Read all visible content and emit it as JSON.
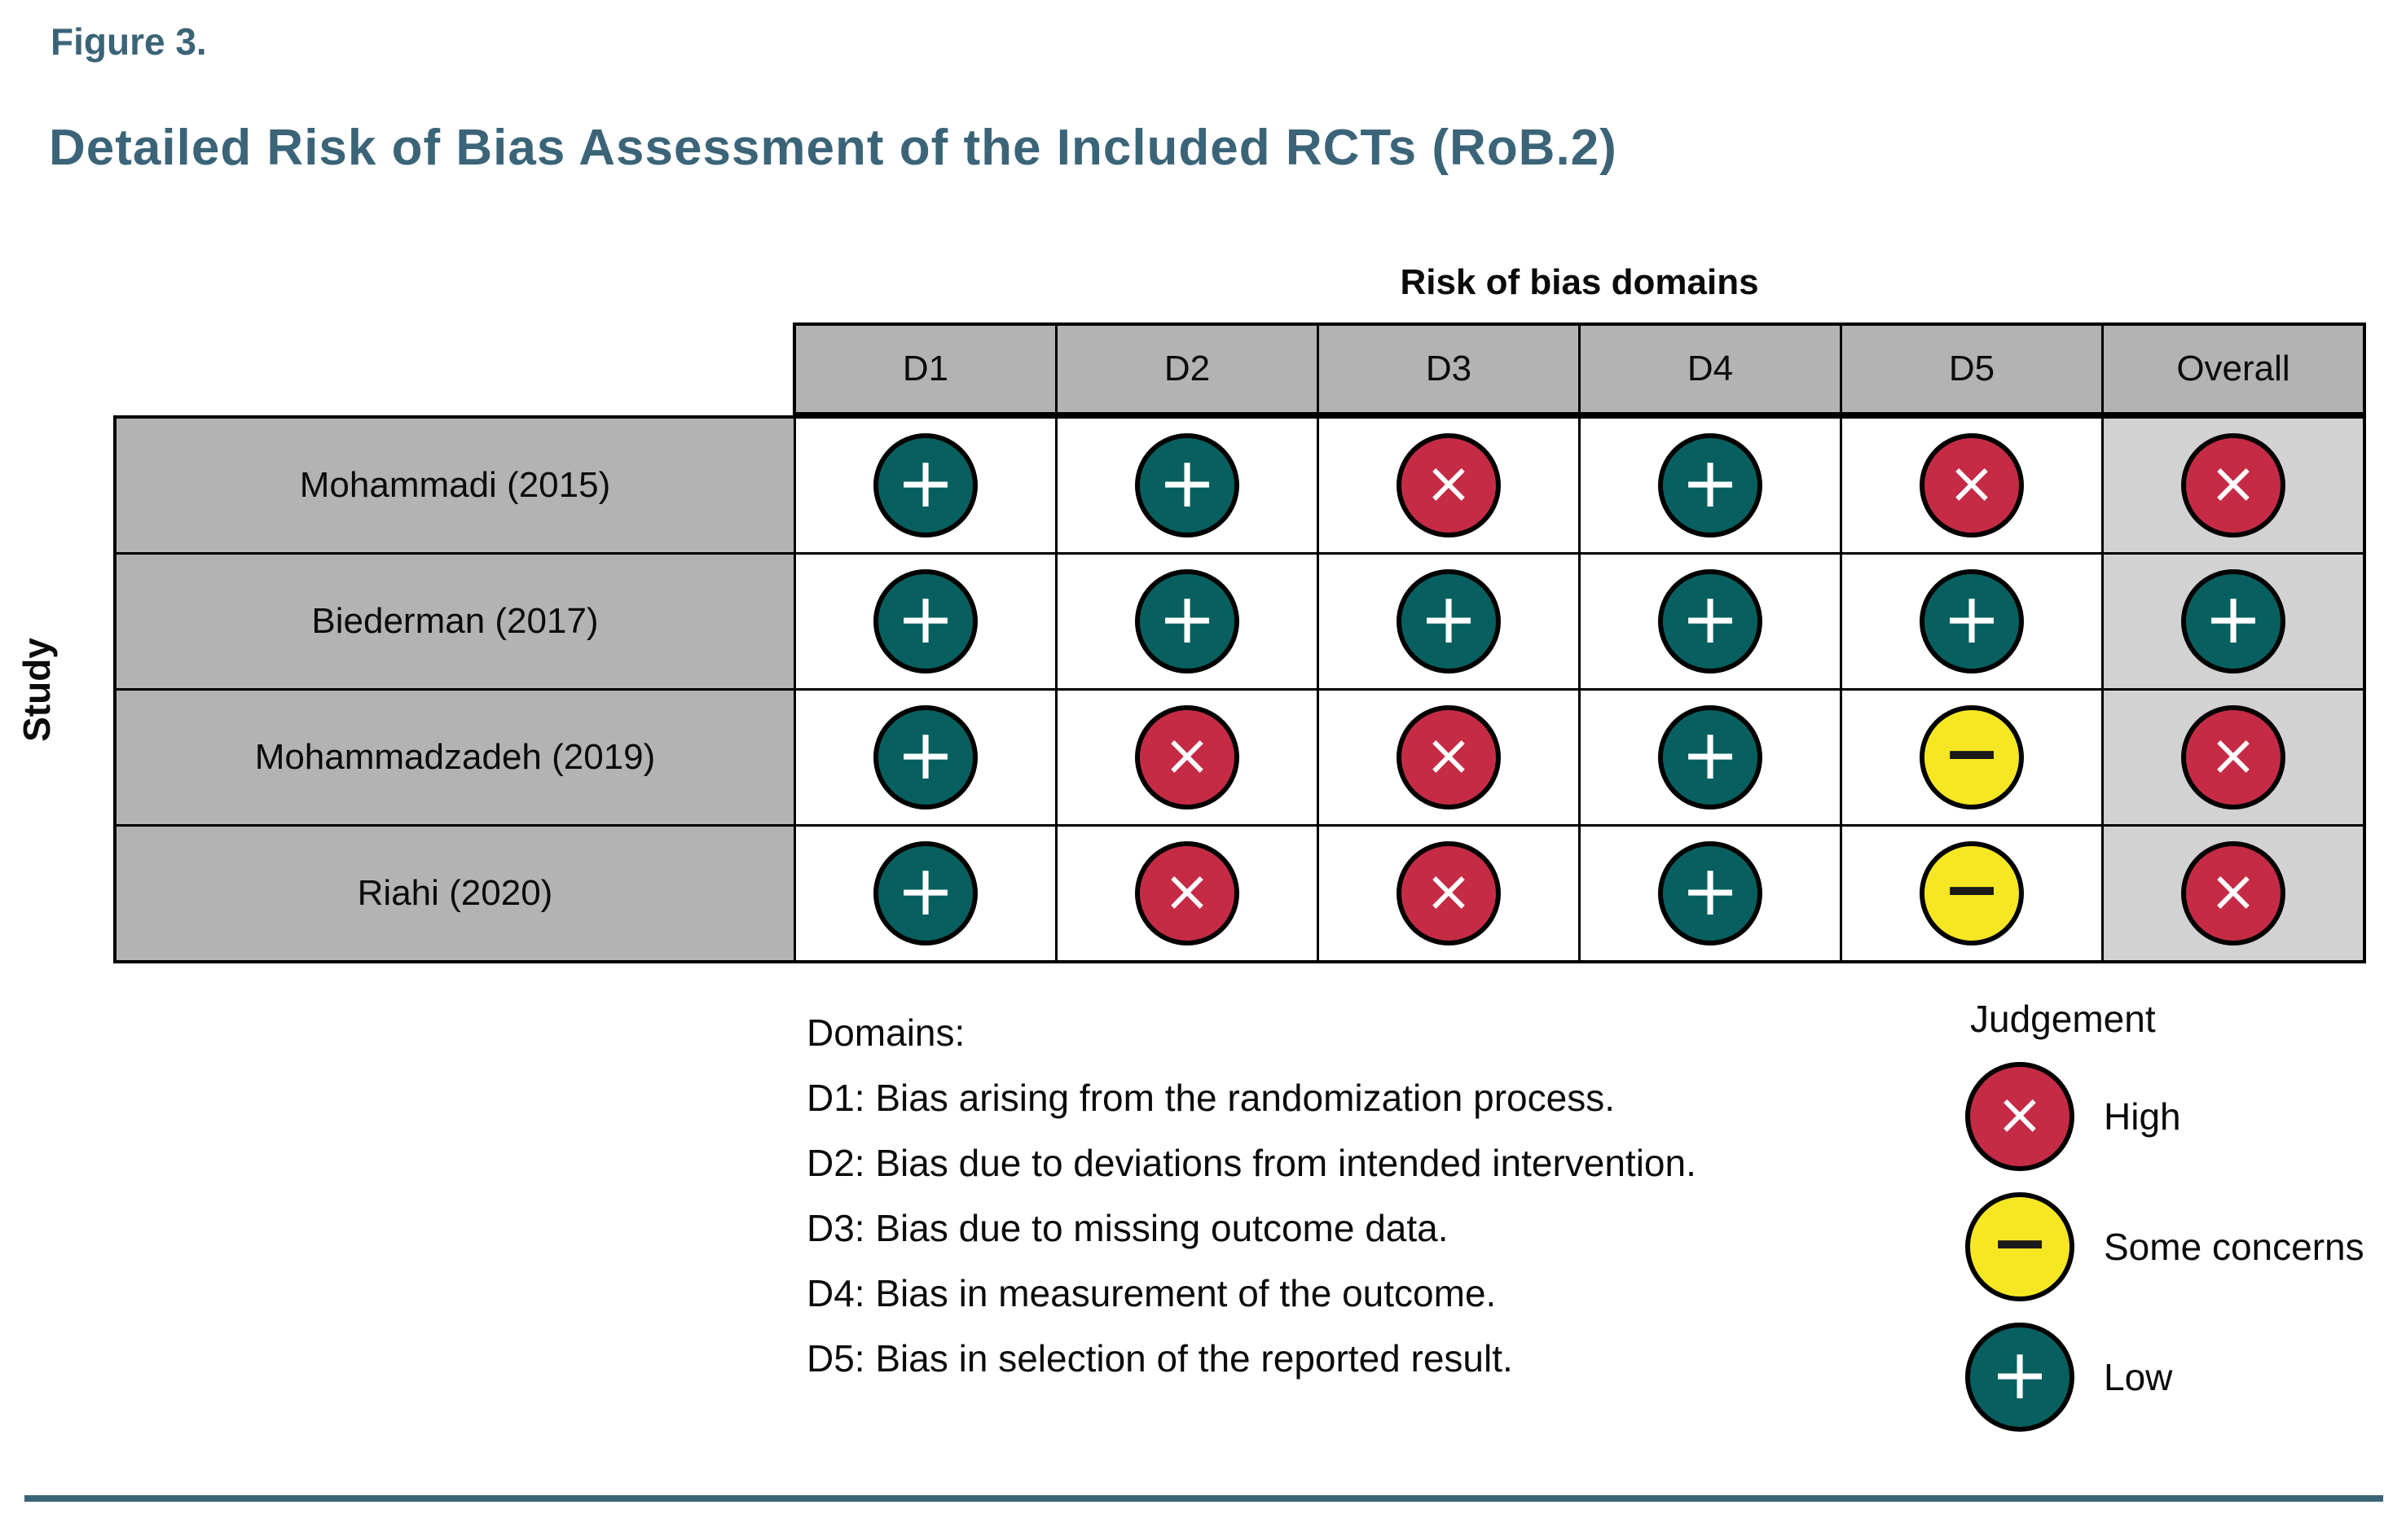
{
  "figure_label": "Figure 3.",
  "figure_title": "Detailed Risk of Bias Assessment of the Included RCTs (RoB.2)",
  "table": {
    "header_caption": "Risk of bias domains",
    "y_axis_label": "Study",
    "columns": [
      "D1",
      "D2",
      "D3",
      "D4",
      "D5",
      "Overall"
    ],
    "rows": [
      {
        "study": "Mohammadi (2015)",
        "judgements": [
          "low",
          "low",
          "high",
          "low",
          "high",
          "high"
        ]
      },
      {
        "study": "Biederman (2017)",
        "judgements": [
          "low",
          "low",
          "low",
          "low",
          "low",
          "low"
        ]
      },
      {
        "study": "Mohammadzadeh (2019)",
        "judgements": [
          "low",
          "high",
          "high",
          "low",
          "some_concerns",
          "high"
        ]
      },
      {
        "study": "Riahi (2020)",
        "judgements": [
          "low",
          "high",
          "high",
          "low",
          "some_concerns",
          "high"
        ]
      }
    ]
  },
  "judgement_styles": {
    "low": {
      "symbol": "+",
      "fill": "#07605f",
      "symbol_color": "#ffffff"
    },
    "some_concerns": {
      "symbol": "−",
      "fill": "#f7e723",
      "symbol_color": "#1a1a1a"
    },
    "high": {
      "symbol": "×",
      "fill": "#c52b45",
      "symbol_color": "#ffffff"
    }
  },
  "domains_legend": {
    "heading": "Domains:",
    "items": [
      "D1: Bias arising from the randomization process.",
      "D2: Bias due to deviations from intended intervention.",
      "D3: Bias due to missing outcome data.",
      "D4: Bias in measurement of the outcome.",
      "D5: Bias in selection of the reported result."
    ]
  },
  "judgement_legend": {
    "title": "Judgement",
    "items": [
      {
        "key": "high",
        "label": "High"
      },
      {
        "key": "some_concerns",
        "label": "Some concerns"
      },
      {
        "key": "low",
        "label": "Low"
      }
    ]
  },
  "colors": {
    "accent_slate": "#3b6478",
    "header_gray": "#b3b3b3",
    "overall_column_gray": "#d2d2d2",
    "table_border": "#000000",
    "low_risk_teal": "#07605f",
    "some_concerns_yellow": "#f7e723",
    "high_risk_red": "#c52b45"
  },
  "chart_data": {
    "type": "table",
    "title": "Detailed Risk of Bias Assessment of the Included RCTs (RoB.2)",
    "subtitle": "Figure 3.",
    "columns_header": "Risk of bias domains",
    "row_header": "Study",
    "columns": [
      "D1",
      "D2",
      "D3",
      "D4",
      "D5",
      "Overall"
    ],
    "rows": [
      {
        "study": "Mohammadi (2015)",
        "values": [
          "Low",
          "Low",
          "High",
          "Low",
          "High",
          "High"
        ]
      },
      {
        "study": "Biederman (2017)",
        "values": [
          "Low",
          "Low",
          "Low",
          "Low",
          "Low",
          "Low"
        ]
      },
      {
        "study": "Mohammadzadeh (2019)",
        "values": [
          "Low",
          "High",
          "High",
          "Low",
          "Some concerns",
          "High"
        ]
      },
      {
        "study": "Riahi (2020)",
        "values": [
          "Low",
          "High",
          "High",
          "Low",
          "Some concerns",
          "High"
        ]
      }
    ],
    "legend": [
      {
        "label": "High",
        "symbol": "×",
        "color": "#c52b45"
      },
      {
        "label": "Some concerns",
        "symbol": "−",
        "color": "#f7e723"
      },
      {
        "label": "Low",
        "symbol": "+",
        "color": "#07605f"
      }
    ],
    "legend_position": "bottom-right"
  }
}
